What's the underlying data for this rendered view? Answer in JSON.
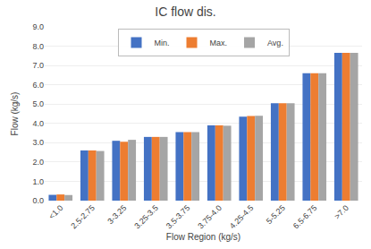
{
  "chart_data": {
    "type": "bar",
    "title": "IC flow dis.",
    "xlabel": "Flow Region (kg/s)",
    "ylabel": "Flow (kg/s)",
    "categories": [
      "<1.0",
      "2.5-2.75",
      "3-3.25",
      "3.25-3.5",
      "3.5-3.75",
      "3.75-4.0",
      "4.25-4.5",
      "5-5.25",
      "6.5-6.75",
      ">7.0"
    ],
    "series": [
      {
        "name": "Min.",
        "color": "#4472C4",
        "values": [
          0.3,
          2.6,
          3.1,
          3.3,
          3.55,
          3.9,
          4.35,
          5.05,
          6.6,
          7.65
        ]
      },
      {
        "name": "Max.",
        "color": "#ED7D31",
        "values": [
          0.32,
          2.6,
          3.05,
          3.3,
          3.55,
          3.9,
          4.38,
          5.05,
          6.6,
          7.65
        ]
      },
      {
        "name": "Avg.",
        "color": "#A5A5A5",
        "values": [
          0.29,
          2.57,
          3.15,
          3.3,
          3.55,
          3.88,
          4.4,
          5.05,
          6.6,
          7.65
        ]
      }
    ],
    "ylim": [
      0,
      9.0
    ],
    "yticks": [
      {
        "value": 0.0,
        "label": "0.0"
      },
      {
        "value": 1.0,
        "label": "1.0"
      },
      {
        "value": 2.0,
        "label": "2.0"
      },
      {
        "value": 3.0,
        "label": "3.0"
      },
      {
        "value": 4.0,
        "label": "4.0"
      },
      {
        "value": 5.0,
        "label": "5.0"
      },
      {
        "value": 6.0,
        "label": "6.0"
      },
      {
        "value": 7.0,
        "label": "7.0"
      },
      {
        "value": 8.0,
        "label": "8.0"
      },
      {
        "value": 9.0,
        "label": "9.0"
      }
    ],
    "grid": true,
    "legend": "upper center"
  }
}
